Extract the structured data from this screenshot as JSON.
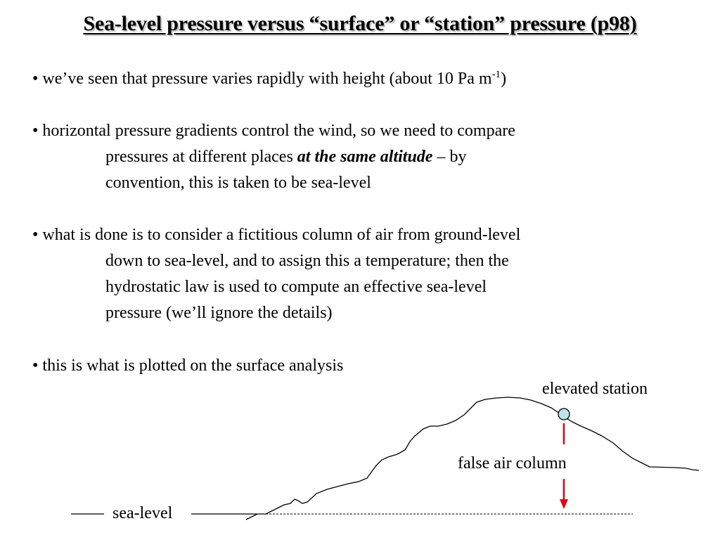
{
  "title": "Sea-level pressure versus “surface” or “station” pressure  (p98)",
  "bullets": {
    "b1": {
      "marker": "•",
      "text": " we’ve seen that pressure varies rapidly with height (about 10 Pa m",
      "sup": "-1",
      "tail": ")"
    },
    "b2": {
      "marker": "•",
      "text": " horizontal pressure gradients control the wind, so we need to compare",
      "cont_line1_before": "pressures at different places ",
      "emphasis": "at the same altitude",
      "cont_line1_after": " – by",
      "cont_line2": "convention, this is taken to be sea-level"
    },
    "b3": {
      "marker": "•",
      "text": " what is done is to consider a fictitious column of air from ground-level",
      "cont_line1": "down to sea-level, and to assign this a temperature; then the",
      "cont_line2": "hydrostatic law is used to compute an effective sea-level",
      "cont_line3": "pressure (we’ll ignore the details)"
    },
    "b4": {
      "marker": "•",
      "text": " this is what is plotted on the surface analysis"
    }
  },
  "diagram": {
    "station_label": "elevated station",
    "column_label": "false air column",
    "sealevel_label": "sea-level",
    "colors": {
      "station_fill": "#bfe3ea",
      "arrow": "#e0001b",
      "line": "#000000"
    }
  }
}
